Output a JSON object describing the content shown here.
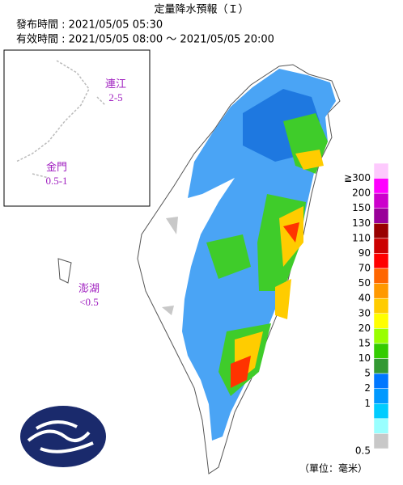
{
  "header": {
    "title": "定量降水預報（Ｉ）",
    "issued": "發布時間 : 2021/05/05 05:30",
    "valid": "有效時間 : 2021/05/05 08:00 ～ 2021/05/05 20:00"
  },
  "islands": [
    {
      "name": "連江",
      "value": "2-5"
    },
    {
      "name": "金門",
      "value": "0.5-1"
    },
    {
      "name": "澎湖",
      "value": "<0.5"
    }
  ],
  "legend": {
    "labels": [
      "≧300",
      "200",
      "150",
      "130",
      "110",
      "90",
      "70",
      "50",
      "40",
      "30",
      "20",
      "15",
      "10",
      "5",
      "2",
      "1",
      "0.5"
    ],
    "colors": [
      "#fdcafd",
      "#ff00ff",
      "#cc00cc",
      "#990099",
      "#990000",
      "#cc0000",
      "#ff0000",
      "#ff6600",
      "#ff9900",
      "#ffcc00",
      "#ffff00",
      "#99ff00",
      "#33cc00",
      "#339933",
      "#0077ff",
      "#0099ff",
      "#00ccff",
      "#99ffff",
      "#c8c8c8"
    ]
  },
  "unit": "（單位：毫米）"
}
